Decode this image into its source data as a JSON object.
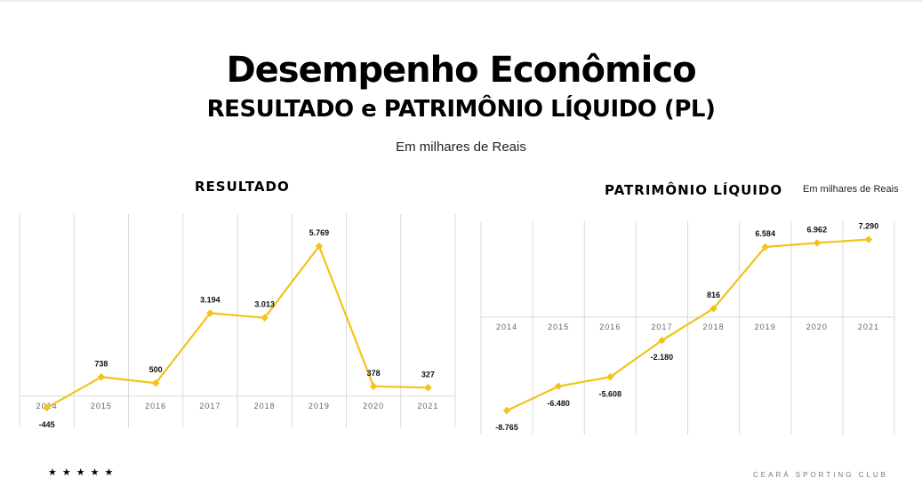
{
  "header": {
    "title": "Desempenho Econômico",
    "subtitle": "RESULTADO e PATRIMÔNIO LÍQUIDO (PL)",
    "units": "Em milhares de Reais"
  },
  "footer": {
    "stars": "★★★★★",
    "club": "CEARÁ SPORTING CLUB"
  },
  "colors": {
    "line": "#f2c318",
    "grid": "#d9d9d9",
    "tick": "#666666"
  },
  "chart_data": [
    {
      "type": "line",
      "title": "RESULTADO",
      "xlabel": "",
      "ylabel": "",
      "grid": true,
      "categories": [
        "2014",
        "2015",
        "2016",
        "2017",
        "2018",
        "2019",
        "2020",
        "2021"
      ],
      "values": [
        -445,
        738,
        500,
        3194,
        3013,
        5769,
        378,
        327
      ],
      "labels": [
        "-445",
        "738",
        "500",
        "3.194",
        "3.013",
        "5.769",
        "378",
        "327"
      ],
      "ylim": [
        -1200,
        7000
      ]
    },
    {
      "type": "line",
      "title": "PATRIMÔNIO LÍQUIDO",
      "units": "Em milhares de Reais",
      "xlabel": "",
      "ylabel": "",
      "grid": true,
      "categories": [
        "2014",
        "2015",
        "2016",
        "2017",
        "2018",
        "2019",
        "2020",
        "2021"
      ],
      "values": [
        -8765,
        -6480,
        -5608,
        -2180,
        816,
        6584,
        6962,
        7290
      ],
      "labels": [
        "-8.765",
        "-6.480",
        "-5.608",
        "-2.180",
        "816",
        "6.584",
        "6.962",
        "7.290"
      ],
      "ylim": [
        -11000,
        9000
      ]
    }
  ]
}
